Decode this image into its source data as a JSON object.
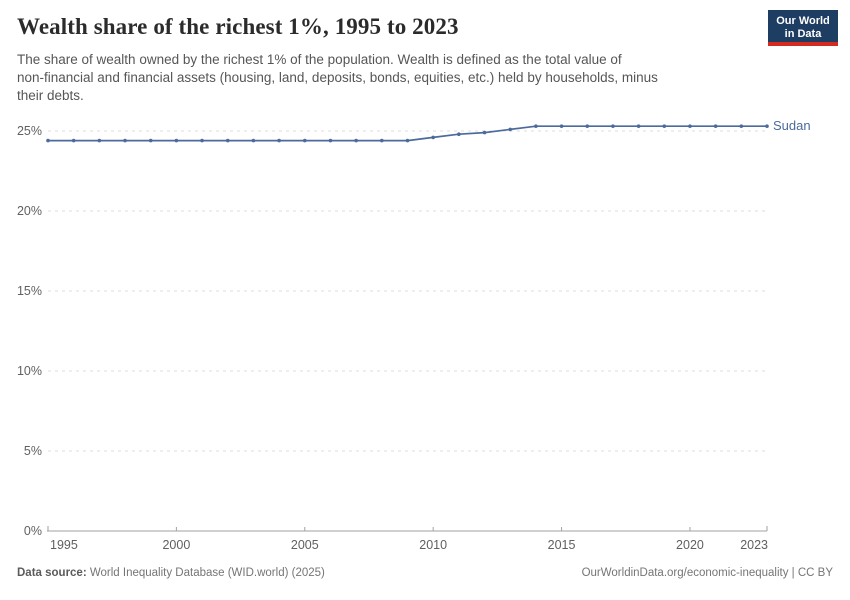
{
  "header": {
    "title": "Wealth share of the richest 1%, 1995 to 2023",
    "subtitle": "The share of wealth owned by the richest 1% of the population. Wealth is defined as the total value of\nnon-financial and financial assets (housing, land, deposits, bonds, equities, etc.) held by households, minus\ntheir debts.",
    "logo": {
      "line1": "Our World",
      "line2": "in Data",
      "bg_color": "#1d3d63",
      "accent_color": "#d42b21"
    }
  },
  "chart_data": {
    "type": "line",
    "title": "Wealth share of the richest 1%, 1995 to 2023",
    "ylabel": "",
    "xlabel": "",
    "x": [
      1995,
      1996,
      1997,
      1998,
      1999,
      2000,
      2001,
      2002,
      2003,
      2004,
      2005,
      2006,
      2007,
      2008,
      2009,
      2010,
      2011,
      2012,
      2013,
      2014,
      2015,
      2016,
      2017,
      2018,
      2019,
      2020,
      2021,
      2022,
      2023
    ],
    "series": [
      {
        "name": "Sudan",
        "color": "#4c6a9c",
        "values": [
          24.4,
          24.4,
          24.4,
          24.4,
          24.4,
          24.4,
          24.4,
          24.4,
          24.4,
          24.4,
          24.4,
          24.4,
          24.4,
          24.4,
          24.4,
          24.6,
          24.8,
          24.9,
          25.1,
          25.3,
          25.3,
          25.3,
          25.3,
          25.3,
          25.3,
          25.3,
          25.3,
          25.3,
          25.3
        ]
      }
    ],
    "xlim": [
      1995,
      2023
    ],
    "ylim": [
      0,
      26
    ],
    "y_ticks": [
      0,
      5,
      10,
      15,
      20,
      25
    ],
    "y_tick_suffix": "%",
    "x_ticks": [
      1995,
      2000,
      2005,
      2010,
      2015,
      2020,
      2023
    ],
    "grid": "horizontal-dashed",
    "legend_position": "end-of-line-label",
    "markers": true
  },
  "footer": {
    "datasource_label": "Data source:",
    "datasource_value": " World Inequality Database (WID.world) (2025)",
    "link": "OurWorldinData.org/economic-inequality | CC BY"
  },
  "colors": {
    "line": "#4c6a9c",
    "gridline": "#dcdcdc",
    "axis": "#a2a2a2",
    "tick_label": "#606060"
  }
}
